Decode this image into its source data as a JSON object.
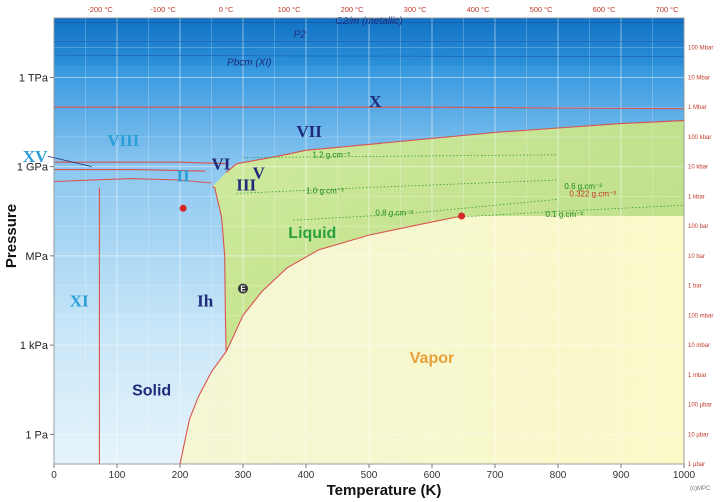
{
  "chart_data": {
    "type": "line",
    "xlabel": "Temperature (K)",
    "ylabel": "Pressure",
    "xlim": [
      0,
      1000
    ],
    "ylim_log10_Pa": [
      -1,
      14
    ],
    "x_ticks": [
      "0",
      "100",
      "200",
      "300",
      "400",
      "500",
      "600",
      "700",
      "800",
      "900",
      "1000"
    ],
    "left_ticks": [
      {
        "label": "1 TPa",
        "log10": 12
      },
      {
        "label": "1 GPa",
        "log10": 9
      },
      {
        "label": "MPa",
        "log10": 6
      },
      {
        "label": "1 kPa",
        "log10": 3
      },
      {
        "label": "1 Pa",
        "log10": 0
      }
    ],
    "top_ticks": [
      "-200 °C",
      "-100 °C",
      "0 °C",
      "100 °C",
      "200 °C",
      "300 °C",
      "400 °C",
      "500 °C",
      "600 °C",
      "700 °C"
    ],
    "top_tick_kelvin": [
      73.15,
      173.15,
      273.15,
      373.15,
      473.15,
      573.15,
      673.15,
      773.15,
      873.15,
      973.15
    ],
    "right_ticks": [
      {
        "label": "100 Mbar",
        "log10": 13
      },
      {
        "label": "10 Mbar",
        "log10": 12
      },
      {
        "label": "1 Mbar",
        "log10": 11
      },
      {
        "label": "100 kbar",
        "log10": 10
      },
      {
        "label": "10 kbar",
        "log10": 9
      },
      {
        "label": "1 kbar",
        "log10": 8
      },
      {
        "label": "100 bar",
        "log10": 7
      },
      {
        "label": "10 bar",
        "log10": 6
      },
      {
        "label": "1 bar",
        "log10": 5
      },
      {
        "label": "100 mbar",
        "log10": 4
      },
      {
        "label": "10 mbar",
        "log10": 3
      },
      {
        "label": "1 mbar",
        "log10": 2
      },
      {
        "label": "100 µbar",
        "log10": 1
      },
      {
        "label": "10 µbar",
        "log10": 0
      },
      {
        "label": "1 µbar",
        "log10": -1
      }
    ],
    "phase_labels": [
      {
        "text": "X",
        "x": 510,
        "y": 11.0,
        "cls": "phase"
      },
      {
        "text": "VII",
        "x": 405,
        "y": 10.0,
        "cls": "phase"
      },
      {
        "text": "VIII",
        "x": 110,
        "y": 9.7,
        "cls": "phaseb"
      },
      {
        "text": "XV",
        "x": -30,
        "y": 9.15,
        "cls": "phaseb"
      },
      {
        "text": "VI",
        "x": 265,
        "y": 8.9,
        "cls": "phase"
      },
      {
        "text": "V",
        "x": 325,
        "y": 8.6,
        "cls": "phase"
      },
      {
        "text": "II",
        "x": 205,
        "y": 8.5,
        "cls": "phaseb"
      },
      {
        "text": "III",
        "x": 305,
        "y": 8.2,
        "cls": "phase"
      },
      {
        "text": "XI",
        "x": 40,
        "y": 4.3,
        "cls": "phaseb"
      },
      {
        "text": "Ih",
        "x": 240,
        "y": 4.3,
        "cls": "phase"
      }
    ],
    "region_labels": [
      {
        "text": "Liquid",
        "x": 410,
        "y": 6.6,
        "color": "#2aa040"
      },
      {
        "text": "Vapor",
        "x": 600,
        "y": 2.4,
        "color": "#e8a038"
      },
      {
        "text": "Solid",
        "x": 155,
        "y": 1.3,
        "color": "#1f2a7a"
      }
    ],
    "high_pressure_labels": [
      {
        "text": "C2/m (metallic)",
        "x": 500,
        "y": 13.8
      },
      {
        "text": "P2",
        "x": 390,
        "y": 13.35
      },
      {
        "text": "Pbcm (XI)",
        "x": 310,
        "y": 12.4
      }
    ],
    "density_labels": [
      {
        "text": "1.2 g.cm⁻³",
        "x": 440,
        "y": 9.3
      },
      {
        "text": "1.0 g.cm⁻³",
        "x": 430,
        "y": 8.1
      },
      {
        "text": "0.8 g.cm⁻³",
        "x": 540,
        "y": 7.35
      },
      {
        "text": "0.6 g.cm⁻³",
        "x": 840,
        "y": 8.25
      },
      {
        "text": "0.1 g.cm⁻³",
        "x": 810,
        "y": 7.3
      }
    ],
    "critical_density_label": {
      "text": "0.322 g.cm⁻³",
      "x": 855,
      "y": 8.0
    },
    "point_E": {
      "text": "E",
      "x": 300,
      "y": 4.9
    },
    "critical_point": {
      "x": 647,
      "y": 7.34
    },
    "other_point": {
      "x": 205,
      "y": 7.6
    },
    "footnote": "(c)MPC",
    "boundaries": {
      "melting": [
        [
          273.16,
          2.78
        ],
        [
          272,
          4
        ],
        [
          271,
          6
        ],
        [
          266,
          7.3
        ],
        [
          255,
          8.3
        ],
        [
          251,
          8.32
        ]
      ],
      "vaporization": [
        [
          273.16,
          2.78
        ],
        [
          285,
          3.3
        ],
        [
          300,
          4.0
        ],
        [
          330,
          4.8
        ],
        [
          370,
          5.6
        ],
        [
          420,
          6.2
        ],
        [
          500,
          6.7
        ],
        [
          580,
          7.05
        ],
        [
          647,
          7.34
        ]
      ],
      "sublimation": [
        [
          200,
          -1
        ],
        [
          215,
          0.5
        ],
        [
          230,
          1.3
        ],
        [
          250,
          2.1
        ],
        [
          273.16,
          2.78
        ]
      ],
      "vii_melting": [
        [
          355,
          9.35
        ],
        [
          400,
          9.55
        ],
        [
          500,
          9.75
        ],
        [
          600,
          9.95
        ],
        [
          700,
          10.15
        ],
        [
          800,
          10.3
        ],
        [
          900,
          10.45
        ],
        [
          1000,
          10.55
        ]
      ],
      "vi_liquid": [
        [
          273,
          8.8
        ],
        [
          290,
          9.1
        ],
        [
          330,
          9.25
        ],
        [
          355,
          9.35
        ]
      ],
      "viii_vii": [
        [
          0,
          9.15
        ],
        [
          100,
          9.15
        ],
        [
          200,
          9.15
        ],
        [
          278,
          9.1
        ]
      ],
      "vii_x": [
        [
          0,
          11.0
        ],
        [
          300,
          11.0
        ],
        [
          600,
          11.0
        ],
        [
          1000,
          10.95
        ]
      ],
      "xi_ih": [
        [
          72,
          -1
        ],
        [
          72,
          3
        ],
        [
          72,
          6
        ],
        [
          72,
          8.3
        ]
      ],
      "xv_line": [
        [
          0,
          8.9
        ],
        [
          130,
          8.9
        ],
        [
          240,
          8.85
        ]
      ],
      "ii_line": [
        [
          0,
          8.5
        ],
        [
          120,
          8.6
        ],
        [
          200,
          8.55
        ],
        [
          250,
          8.45
        ]
      ],
      "pbcm_line": [
        [
          0,
          12.75
        ],
        [
          500,
          12.72
        ],
        [
          1000,
          12.7
        ]
      ],
      "p2_line": [
        [
          0,
          13.2
        ],
        [
          1000,
          13.2
        ]
      ],
      "c2m_line": [
        [
          0,
          13.85
        ],
        [
          1000,
          13.85
        ]
      ]
    }
  }
}
